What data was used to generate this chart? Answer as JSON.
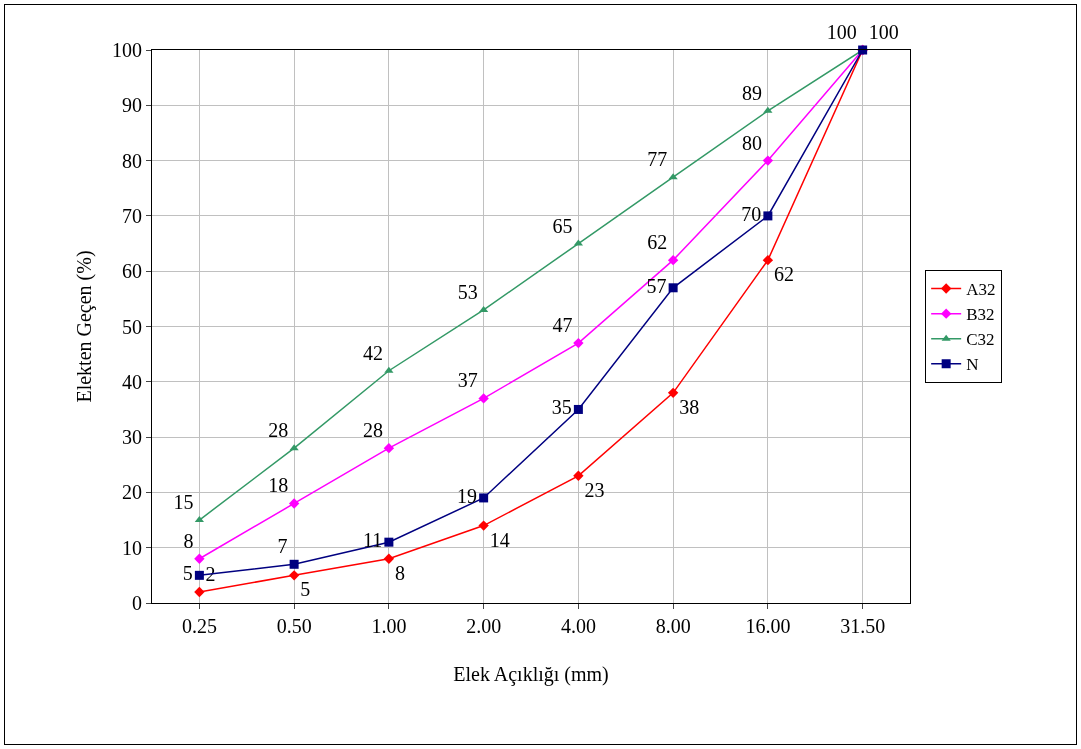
{
  "chart_data": {
    "type": "line",
    "xlabel": "Elek Açıklığı (mm)",
    "ylabel": "Elekten Geçen (%)",
    "categories": [
      "0.25",
      "0.50",
      "1.00",
      "2.00",
      "4.00",
      "8.00",
      "16.00",
      "31.50"
    ],
    "series": [
      {
        "name": "A32",
        "color": "#ff0000",
        "marker": "diamond",
        "values": [
          2,
          5,
          8,
          14,
          23,
          38,
          62,
          100
        ],
        "value_labels": [
          "2",
          "5",
          "8",
          "14",
          "23",
          "38",
          "62",
          "100"
        ]
      },
      {
        "name": "B32",
        "color": "#ff00ff",
        "marker": "diamond",
        "values": [
          8,
          18,
          28,
          37,
          47,
          62,
          80,
          100
        ],
        "value_labels": [
          "8",
          "18",
          "28",
          "37",
          "47",
          "62",
          "80",
          null
        ]
      },
      {
        "name": "C32",
        "color": "#339966",
        "marker": "triangle",
        "values": [
          15,
          28,
          42,
          53,
          65,
          77,
          89,
          100
        ],
        "value_labels": [
          "15",
          "28",
          "42",
          "53",
          "65",
          "77",
          "89",
          "100"
        ]
      },
      {
        "name": "N",
        "color": "#000080",
        "marker": "square",
        "values": [
          5,
          7,
          11,
          19,
          35,
          57,
          70,
          100
        ],
        "value_labels": [
          "5",
          "7",
          "11",
          "19",
          "35",
          "57",
          "70",
          null
        ]
      }
    ],
    "ylim": [
      0,
      100
    ],
    "yticks": [
      0,
      10,
      20,
      30,
      40,
      50,
      60,
      70,
      80,
      90,
      100
    ],
    "grid": true,
    "legend": "right",
    "line_style": "solid"
  }
}
